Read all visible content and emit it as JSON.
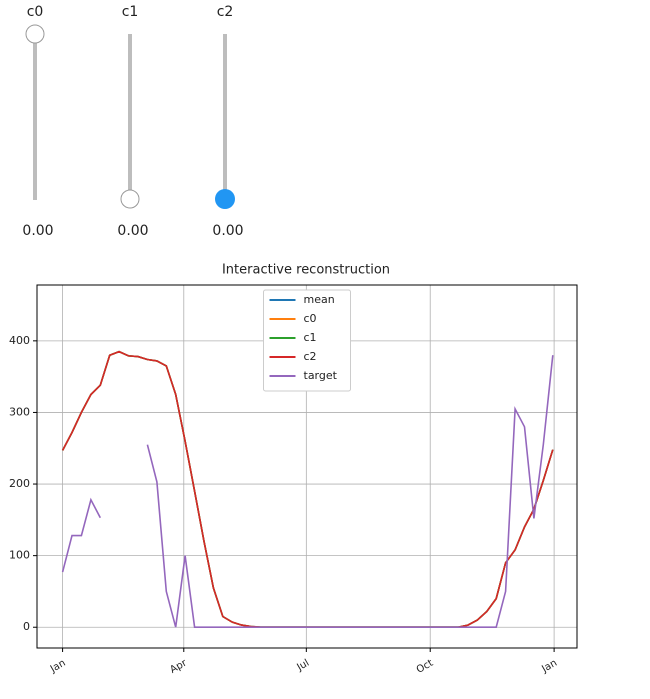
{
  "sliders": [
    {
      "label": "c0",
      "value": "0.00"
    },
    {
      "label": "c1",
      "value": "0.00"
    },
    {
      "label": "c2",
      "value": "0.00"
    }
  ],
  "chart_data": {
    "type": "line",
    "title": "Interactive reconstruction",
    "x": [
      0,
      7,
      14,
      21,
      28,
      35,
      42,
      49,
      56,
      63,
      70,
      77,
      84,
      91,
      98,
      105,
      112,
      119,
      126,
      133,
      140,
      147,
      154,
      161,
      168,
      175,
      182,
      189,
      196,
      203,
      210,
      217,
      224,
      231,
      238,
      245,
      252,
      259,
      266,
      273,
      280,
      287,
      294,
      301,
      308,
      315,
      322,
      329,
      336,
      343,
      350,
      357,
      364
    ],
    "series": [
      {
        "name": "mean",
        "color": "#1f77b4",
        "values": [
          247,
          272,
          300,
          325,
          338,
          380,
          385,
          379,
          378,
          374,
          372,
          365,
          325,
          260,
          190,
          120,
          55,
          15,
          7,
          3,
          1,
          0,
          0,
          0,
          0,
          0,
          0,
          0,
          0,
          0,
          0,
          0,
          0,
          0,
          0,
          0,
          0,
          0,
          0,
          0,
          0,
          0,
          0,
          3,
          10,
          22,
          40,
          90,
          108,
          140,
          165,
          205,
          248
        ]
      },
      {
        "name": "c0",
        "color": "#ff7f0e",
        "values": [
          247,
          272,
          300,
          325,
          338,
          380,
          385,
          379,
          378,
          374,
          372,
          365,
          325,
          260,
          190,
          120,
          55,
          15,
          7,
          3,
          1,
          0,
          0,
          0,
          0,
          0,
          0,
          0,
          0,
          0,
          0,
          0,
          0,
          0,
          0,
          0,
          0,
          0,
          0,
          0,
          0,
          0,
          0,
          3,
          10,
          22,
          40,
          90,
          108,
          140,
          165,
          205,
          248
        ]
      },
      {
        "name": "c1",
        "color": "#2ca02c",
        "values": [
          247,
          272,
          300,
          325,
          338,
          380,
          385,
          379,
          378,
          374,
          372,
          365,
          325,
          260,
          190,
          120,
          55,
          15,
          7,
          3,
          1,
          0,
          0,
          0,
          0,
          0,
          0,
          0,
          0,
          0,
          0,
          0,
          0,
          0,
          0,
          0,
          0,
          0,
          0,
          0,
          0,
          0,
          0,
          3,
          10,
          22,
          40,
          90,
          108,
          140,
          165,
          205,
          248
        ]
      },
      {
        "name": "c2",
        "color": "#d62728",
        "values": [
          247,
          272,
          300,
          325,
          338,
          380,
          385,
          379,
          378,
          374,
          372,
          365,
          325,
          260,
          190,
          120,
          55,
          15,
          7,
          3,
          1,
          0,
          0,
          0,
          0,
          0,
          0,
          0,
          0,
          0,
          0,
          0,
          0,
          0,
          0,
          0,
          0,
          0,
          0,
          0,
          0,
          0,
          0,
          3,
          10,
          22,
          40,
          90,
          108,
          140,
          165,
          205,
          248
        ]
      },
      {
        "name": "target",
        "color": "#9467bd",
        "values": [
          77,
          128,
          128,
          178,
          153,
          null,
          null,
          null,
          null,
          255,
          203,
          50,
          0,
          100,
          0,
          0,
          0,
          0,
          0,
          0,
          0,
          0,
          0,
          0,
          0,
          0,
          0,
          0,
          0,
          0,
          0,
          0,
          0,
          0,
          0,
          0,
          0,
          0,
          0,
          0,
          0,
          0,
          0,
          0,
          0,
          0,
          0,
          50,
          305,
          280,
          152,
          255,
          380
        ]
      }
    ],
    "xlim": [
      -19,
      382
    ],
    "xticks": [
      {
        "value": 0,
        "label": "Jan"
      },
      {
        "value": 90,
        "label": "Apr"
      },
      {
        "value": 181,
        "label": "Jul"
      },
      {
        "value": 273,
        "label": "Oct"
      },
      {
        "value": 365,
        "label": "Jan"
      }
    ],
    "ylim": [
      -29,
      478
    ],
    "yticks": [
      0,
      100,
      200,
      300,
      400
    ],
    "grid": true,
    "legend": "upper center"
  }
}
